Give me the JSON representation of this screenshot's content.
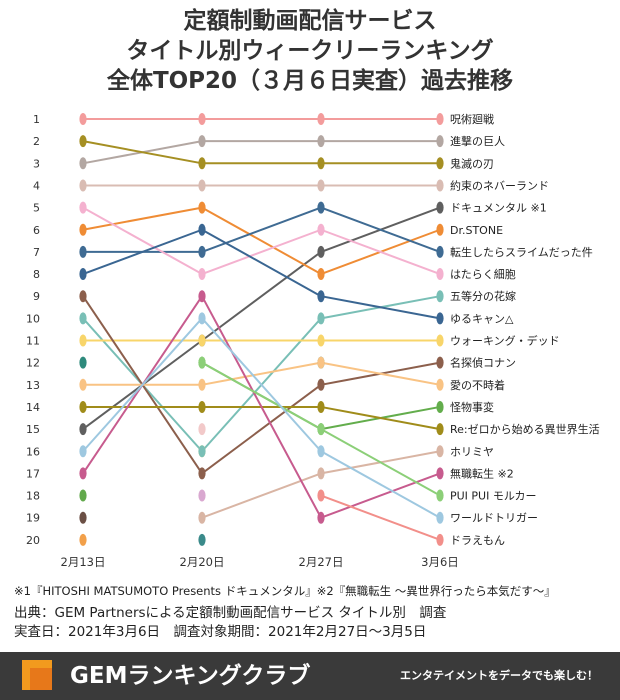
{
  "title": {
    "line1": "定額制動画配信サービス",
    "line2": "タイトル別ウィークリーランキング",
    "line3": "全体TOP20（３月６日実査）過去推移"
  },
  "footnote": "※1『HITOSHI MATSUMOTO Presents ドキュメンタル』※2『無職転生 ～異世界行ったら本気だす～』",
  "source": {
    "line1": "出典：GEM Partnersによる定額制動画配信サービス タイトル別　調査",
    "line2": "実査日：2021年3月6日　調査対象期間：2021年2月27日～3月5日"
  },
  "footer": {
    "brand": "GEMランキングクラブ",
    "tagline": "エンタテイメントをデータでも楽しむ！"
  },
  "chart_data": {
    "type": "line",
    "x": [
      "2月13日",
      "2月20日",
      "2月27日",
      "3月6日"
    ],
    "ranks": [
      1,
      2,
      3,
      4,
      5,
      6,
      7,
      8,
      9,
      10,
      11,
      12,
      13,
      14,
      15,
      16,
      17,
      18,
      19,
      20
    ],
    "series": [
      {
        "name": "呪術廻戦",
        "ranks": [
          1,
          1,
          1,
          1
        ],
        "color": "#f39c9c"
      },
      {
        "name": "進撃の巨人",
        "ranks": [
          3,
          2,
          2,
          2
        ],
        "color": "#b3a7a2"
      },
      {
        "name": "鬼滅の刃",
        "ranks": [
          2,
          3,
          3,
          3
        ],
        "color": "#a58f23"
      },
      {
        "name": "約束のネバーランド",
        "ranks": [
          4,
          4,
          4,
          4
        ],
        "color": "#d9bcb3"
      },
      {
        "name": "ドキュメンタル ※1",
        "ranks": [
          15,
          11,
          7,
          5
        ],
        "color": "#5f5f5f"
      },
      {
        "name": "Dr.STONE",
        "ranks": [
          6,
          5,
          8,
          6
        ],
        "color": "#ef8c35"
      },
      {
        "name": "転生したらスライムだった件",
        "ranks": [
          7,
          7,
          5,
          7
        ],
        "color": "#3f6b93"
      },
      {
        "name": "はたらく細胞",
        "ranks": [
          5,
          8,
          6,
          8
        ],
        "color": "#f4b1cf"
      },
      {
        "name": "五等分の花嫁",
        "ranks": [
          10,
          16,
          10,
          9
        ],
        "color": "#79bfb6"
      },
      {
        "name": "ゆるキャン△",
        "ranks": [
          8,
          6,
          9,
          10
        ],
        "color": "#3a6692"
      },
      {
        "name": "ウォーキング・デッド",
        "ranks": [
          11,
          11,
          11,
          11
        ],
        "color": "#f8d56a"
      },
      {
        "name": "名探偵コナン",
        "ranks": [
          9,
          17,
          13,
          12
        ],
        "color": "#8c5f4c"
      },
      {
        "name": "愛の不時着",
        "ranks": [
          13,
          13,
          12,
          13
        ],
        "color": "#f9c384"
      },
      {
        "name": "怪物事変",
        "ranks": [
          null,
          12,
          15,
          14
        ],
        "color": "#63ad4c"
      },
      {
        "name": "Re:ゼロから始める異世界生活",
        "ranks": [
          14,
          14,
          14,
          15
        ],
        "color": "#a08c1a"
      },
      {
        "name": "ホリミヤ",
        "ranks": [
          null,
          19,
          17,
          16
        ],
        "color": "#d9b5a4"
      },
      {
        "name": "無職転生 ※2",
        "ranks": [
          17,
          9,
          19,
          17
        ],
        "color": "#c75b8e"
      },
      {
        "name": "PUI PUI モルカー",
        "ranks": [
          null,
          12,
          15,
          18
        ],
        "color": "#8ccf78"
      },
      {
        "name": "ワールドトリガー",
        "ranks": [
          16,
          10,
          16,
          19
        ],
        "color": "#9ec8e0"
      },
      {
        "name": "ドラえもん",
        "ranks": [
          null,
          null,
          18,
          20
        ],
        "color": "#f28f8a"
      }
    ],
    "extra_points": [
      {
        "rank": 12,
        "dates": [
          "2月13日",
          "2月27日"
        ],
        "color": "#2e8a7c"
      },
      {
        "rank": 15,
        "dates": [
          "2月20日"
        ],
        "color": "#f2c9c9"
      },
      {
        "rank": 16,
        "dates": [
          "2月20日"
        ],
        "color": "#ffd966"
      },
      {
        "rank": 18,
        "dates": [
          "2月13日"
        ],
        "color": "#62a94c"
      },
      {
        "rank": 18,
        "dates": [
          "2月20日"
        ],
        "color": "#d9a8d0"
      },
      {
        "rank": 19,
        "dates": [
          "2月13日"
        ],
        "color": "#6b4f45"
      },
      {
        "rank": 20,
        "dates": [
          "2月13日"
        ],
        "color": "#f2a04a"
      },
      {
        "rank": 20,
        "dates": [
          "2月20日"
        ],
        "color": "#3a8a8a"
      }
    ],
    "legend_placement": "right",
    "grid": false
  }
}
